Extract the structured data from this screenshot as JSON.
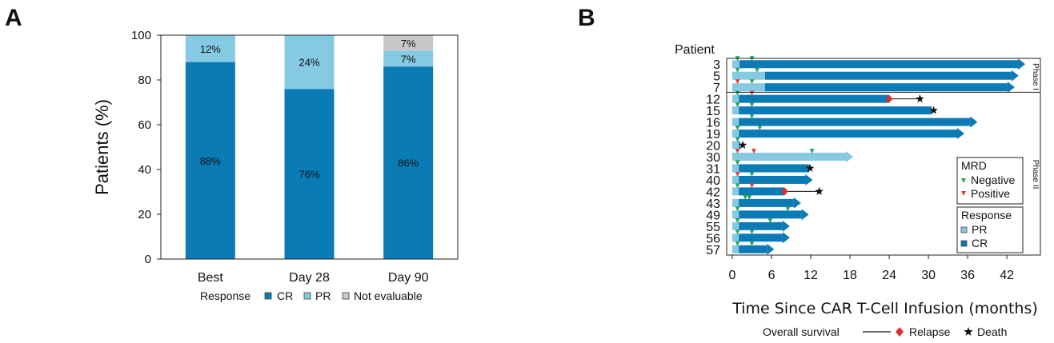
{
  "colors": {
    "cr": "#0a7bb5",
    "pr": "#85c9e3",
    "ne": "#c8c8c8",
    "negative": "#27a35a",
    "positive": "#e04040",
    "relapse": "#e03030",
    "death": "#111111"
  },
  "panels": {
    "a": "A",
    "b": "B"
  },
  "chart_data": [
    {
      "type": "bar",
      "stacked": true,
      "categories": [
        "Best",
        "Day 28",
        "Day 90"
      ],
      "series": [
        {
          "name": "CR",
          "values": [
            88,
            76,
            86
          ],
          "labels": [
            "88%",
            "76%",
            "86%"
          ]
        },
        {
          "name": "PR",
          "values": [
            12,
            24,
            7
          ],
          "labels": [
            "12%",
            "24%",
            "7%"
          ]
        },
        {
          "name": "Not evaluable",
          "values": [
            0,
            0,
            7
          ],
          "labels": [
            "",
            "",
            "7%"
          ]
        }
      ],
      "ylabel": "Patients (%)",
      "ylim": [
        0,
        100
      ],
      "yticks": [
        0,
        20,
        40,
        60,
        80,
        100
      ],
      "legend_title": "Response",
      "legend_placement": "bottom"
    },
    {
      "type": "swimmer",
      "xlabel": "Time Since CAR T-Cell Infusion (months)",
      "xlim": [
        0,
        46
      ],
      "xticks": [
        0,
        6,
        12,
        18,
        24,
        30,
        36,
        42
      ],
      "patient_header": "Patient",
      "phases": [
        "Phase I",
        "Phase II"
      ],
      "patients": [
        {
          "id": "3",
          "phase": "Phase I",
          "pr_until": 1.1,
          "end": 44.8,
          "ongoing": true,
          "mrd_neg": [
            0.8,
            3.0
          ],
          "mrd_pos": []
        },
        {
          "id": "5",
          "phase": "Phase I",
          "pr_until": 5.0,
          "end": 43.8,
          "ongoing": true,
          "mrd_neg": [
            0.8,
            3.8
          ],
          "mrd_pos": []
        },
        {
          "id": "7",
          "phase": "Phase I",
          "pr_until": 5.0,
          "end": 43.2,
          "ongoing": true,
          "mrd_neg": [
            3.0
          ],
          "mrd_pos": [
            0.8
          ]
        },
        {
          "id": "12",
          "phase": "Phase II",
          "pr_until": 1.0,
          "end": 24.0,
          "ongoing": false,
          "mrd_neg": [
            0.8
          ],
          "mrd_pos": [
            3.0
          ],
          "relapse": 24.0,
          "death": 28.7
        },
        {
          "id": "15",
          "phase": "Phase II",
          "pr_until": 1.0,
          "end": 30.5,
          "ongoing": false,
          "mrd_neg": [
            0.8,
            3.0
          ],
          "mrd_pos": [],
          "death": 30.8
        },
        {
          "id": "16",
          "phase": "Phase II",
          "pr_until": 1.0,
          "end": 37.5,
          "ongoing": true,
          "mrd_neg": [
            3.0
          ],
          "mrd_pos": []
        },
        {
          "id": "19",
          "phase": "Phase II",
          "pr_until": 1.0,
          "end": 35.5,
          "ongoing": true,
          "mrd_neg": [
            0.8,
            4.2
          ],
          "mrd_pos": []
        },
        {
          "id": "20",
          "phase": "Phase II",
          "pr_until": 1.0,
          "end": 1.2,
          "ongoing": false,
          "mrd_neg": [
            0.8
          ],
          "mrd_pos": [],
          "death": 1.6
        },
        {
          "id": "30",
          "phase": "Phase II",
          "pr_until": 18.5,
          "end": 18.5,
          "ongoing": true,
          "mrd_neg": [
            12.2
          ],
          "mrd_pos": [
            0.8,
            3.3
          ]
        },
        {
          "id": "31",
          "phase": "Phase II",
          "pr_until": 1.0,
          "end": 11.8,
          "ongoing": false,
          "mrd_neg": [
            0.8
          ],
          "mrd_pos": [],
          "death": 11.9
        },
        {
          "id": "40",
          "phase": "Phase II",
          "pr_until": 1.0,
          "end": 12.3,
          "ongoing": true,
          "mrd_neg": [
            3.0
          ],
          "mrd_pos": [
            0.8
          ]
        },
        {
          "id": "42",
          "phase": "Phase II",
          "pr_until": 1.0,
          "end": 8.0,
          "ongoing": false,
          "mrd_neg": [
            0.8
          ],
          "mrd_pos": [
            3.0
          ],
          "relapse": 8.0,
          "death": 13.3
        },
        {
          "id": "43",
          "phase": "Phase II",
          "pr_until": 1.0,
          "end": 10.5,
          "ongoing": true,
          "mrd_neg": [
            2.0,
            2.6
          ],
          "mrd_pos": []
        },
        {
          "id": "49",
          "phase": "Phase II",
          "pr_until": 1.0,
          "end": 11.7,
          "ongoing": true,
          "mrd_neg": [
            0.8,
            8.5
          ],
          "mrd_pos": []
        },
        {
          "id": "55",
          "phase": "Phase II",
          "pr_until": 1.0,
          "end": 8.8,
          "ongoing": true,
          "mrd_neg": [
            0.8,
            5.8
          ],
          "mrd_pos": []
        },
        {
          "id": "56",
          "phase": "Phase II",
          "pr_until": 1.0,
          "end": 8.8,
          "ongoing": true,
          "mrd_neg": [
            0.8,
            3.0
          ],
          "mrd_pos": []
        },
        {
          "id": "57",
          "phase": "Phase II",
          "pr_until": 1.0,
          "end": 6.4,
          "ongoing": true,
          "mrd_neg": [
            0.8,
            3.0
          ],
          "mrd_pos": []
        }
      ],
      "mrd_legend": {
        "title": "MRD",
        "items": [
          "Negative",
          "Positive"
        ]
      },
      "response_legend": {
        "title": "Response",
        "items": [
          "PR",
          "CR"
        ]
      },
      "survival_legend": {
        "title": "Overall survival",
        "items": [
          "Relapse",
          "Death"
        ]
      }
    }
  ]
}
